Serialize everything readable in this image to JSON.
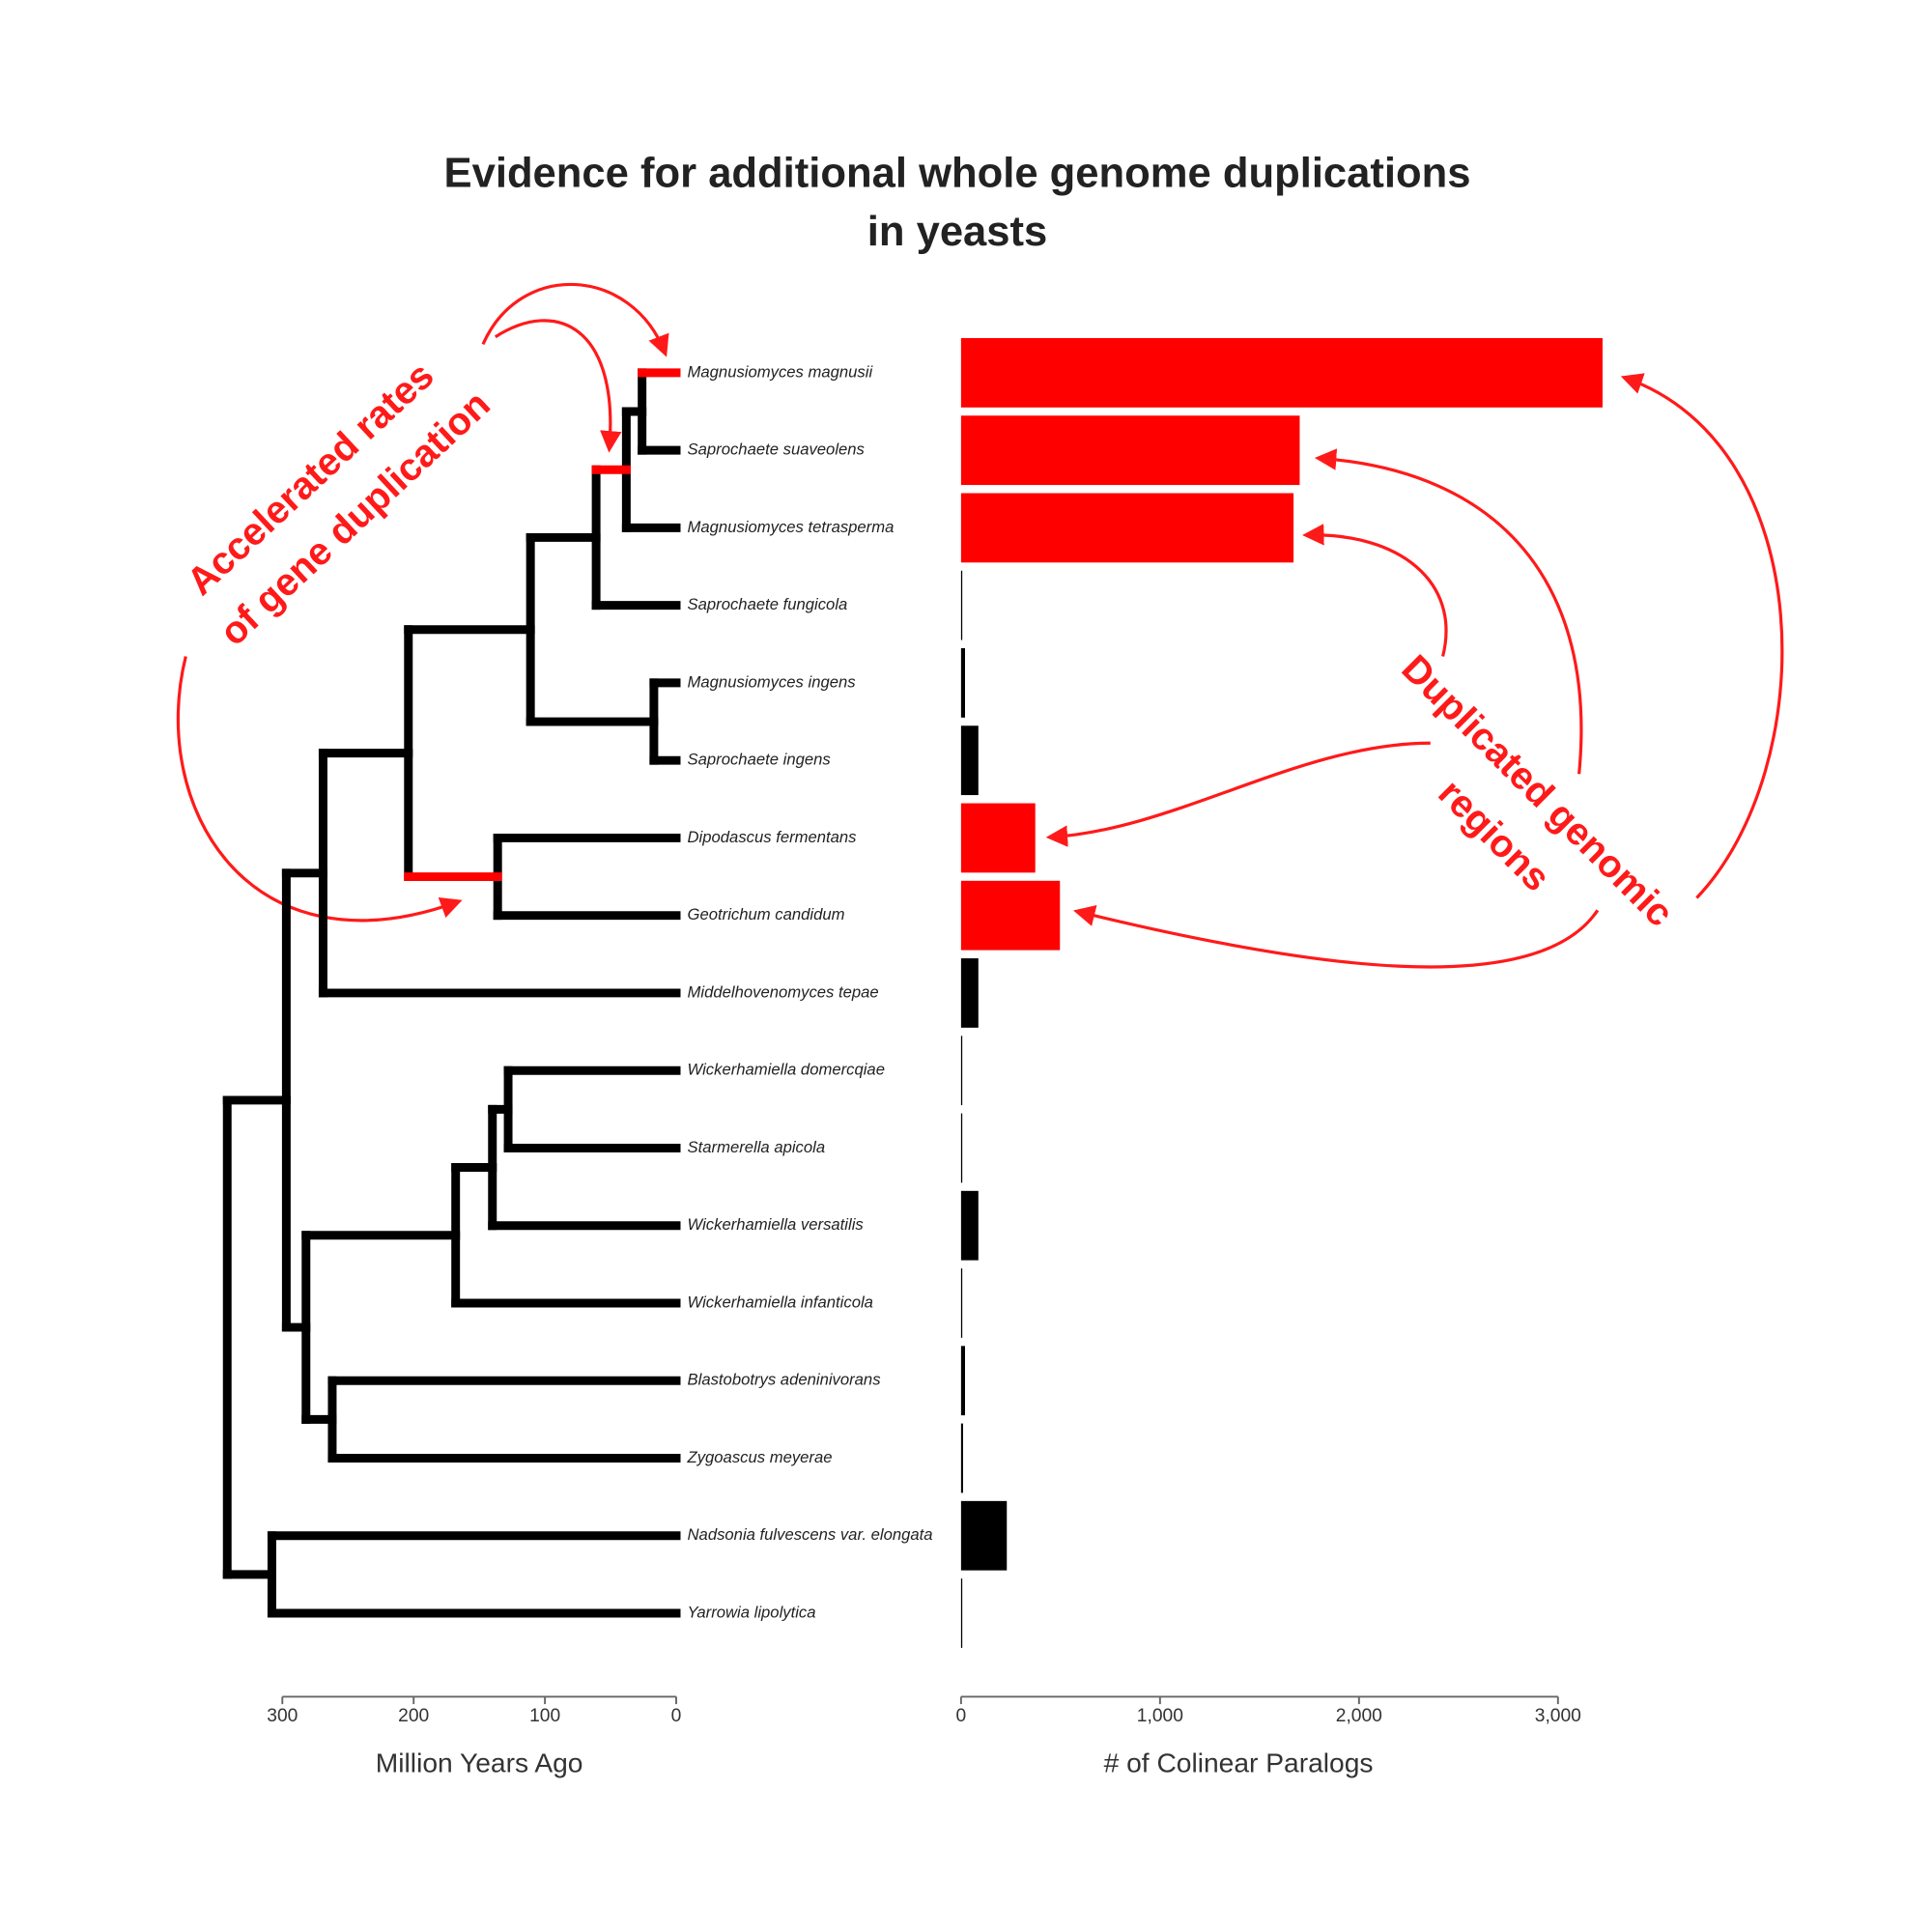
{
  "chart_data": {
    "type": "tree-bar",
    "title": [
      "Evidence for additional whole genome duplications",
      "in yeasts"
    ],
    "annotations": [
      [
        "Accelerated rates",
        "of gene duplication"
      ],
      [
        "Duplicated genomic",
        "regions"
      ]
    ],
    "tree": {
      "leaves": [
        "Magnusiomyces magnusii",
        "Saprochaete suaveolens",
        "Magnusiomyces tetrasperma",
        "Saprochaete fungicola",
        "Magnusiomyces ingens",
        "Saprochaete ingens",
        "Dipodascus fermentans",
        "Geotrichum candidum",
        "Middelhovenomyces tepae",
        "Wickerhamiella domercqiae",
        "Starmerella apicola",
        "Wickerhamiella versatilis",
        "Wickerhamiella infanticola",
        "Blastobotrys adeninivorans",
        "Zygoascus meyerae",
        "Nadsonia fulvescens var. elongata",
        "Yarrowia lipolytica"
      ],
      "color": "#000000",
      "nodes": [
        {
          "age": 26,
          "children": [
            {
              "leaf": 0,
              "color": "#ff0000"
            },
            {
              "leaf": 1
            }
          ]
        },
        {
          "age": 38,
          "children": [
            {
              "node": 0
            },
            {
              "leaf": 2
            }
          ]
        },
        {
          "age": 61,
          "children": [
            {
              "node": 1,
              "color": "#ff0000"
            },
            {
              "leaf": 3
            }
          ]
        },
        {
          "age": 17,
          "children": [
            {
              "leaf": 4
            },
            {
              "leaf": 5
            }
          ]
        },
        {
          "age": 111,
          "children": [
            {
              "node": 2
            },
            {
              "node": 3
            }
          ]
        },
        {
          "age": 136,
          "children": [
            {
              "leaf": 6
            },
            {
              "leaf": 7
            }
          ]
        },
        {
          "age": 204,
          "children": [
            {
              "node": 4
            },
            {
              "node": 5,
              "color": "#ff0000"
            }
          ]
        },
        {
          "age": 269,
          "children": [
            {
              "node": 6
            },
            {
              "leaf": 8
            }
          ]
        },
        {
          "age": 128,
          "children": [
            {
              "leaf": 9
            },
            {
              "leaf": 10
            }
          ]
        },
        {
          "age": 140,
          "children": [
            {
              "node": 8
            },
            {
              "leaf": 11
            }
          ]
        },
        {
          "age": 168,
          "children": [
            {
              "node": 9
            },
            {
              "leaf": 12
            }
          ]
        },
        {
          "age": 262,
          "children": [
            {
              "leaf": 13
            },
            {
              "leaf": 14
            }
          ]
        },
        {
          "age": 282,
          "children": [
            {
              "node": 10
            },
            {
              "node": 11
            }
          ]
        },
        {
          "age": 297,
          "children": [
            {
              "node": 7
            },
            {
              "node": 12
            }
          ]
        },
        {
          "age": 308,
          "children": [
            {
              "leaf": 15
            },
            {
              "leaf": 16
            }
          ]
        },
        {
          "age": 342,
          "children": [
            {
              "node": 13
            },
            {
              "node": 14
            }
          ]
        }
      ],
      "xlabel": "Million Years Ago",
      "xlim": [
        300,
        0
      ],
      "xticks": [
        300,
        200,
        100,
        0
      ]
    },
    "bars": {
      "values": [
        3224,
        1702,
        1671,
        5,
        20,
        87,
        373,
        497,
        87,
        2,
        2,
        87,
        5,
        20,
        10,
        230,
        2
      ],
      "colors": [
        "#ff0000",
        "#ff0000",
        "#ff0000",
        "#000000",
        "#000000",
        "#000000",
        "#ff0000",
        "#ff0000",
        "#000000",
        "#000000",
        "#000000",
        "#000000",
        "#000000",
        "#000000",
        "#000000",
        "#000000",
        "#000000"
      ],
      "xlabel": "# of Colinear Paralogs",
      "xlim": [
        0,
        3000
      ],
      "xticks": [
        0,
        {
          "value": 1000,
          "label": "1,000"
        },
        {
          "value": 2000,
          "label": "2,000"
        },
        {
          "value": 3000,
          "label": "3,000"
        }
      ]
    }
  }
}
